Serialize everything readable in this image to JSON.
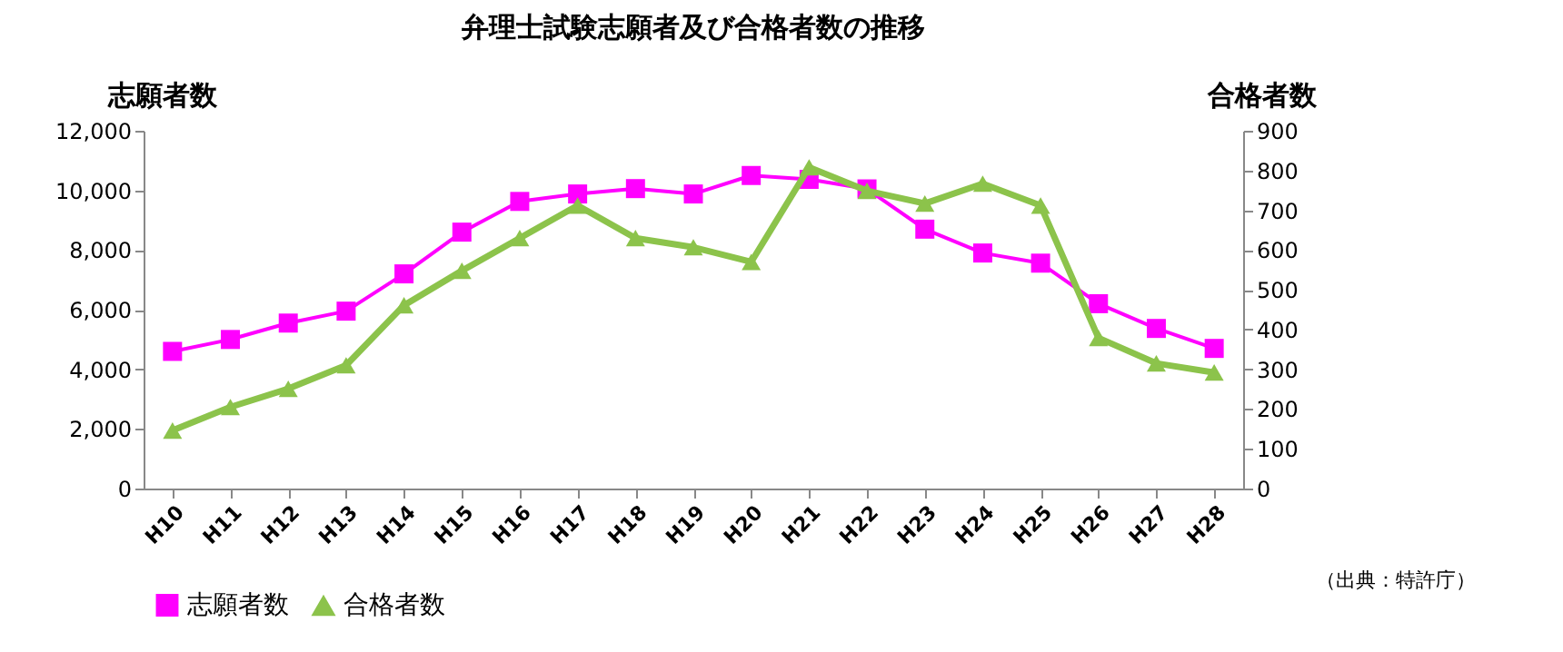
{
  "chart_data": {
    "type": "line",
    "title": "弁理士試験志願者及び合格者数の推移",
    "ylabel": "志願者数",
    "y2label": "合格者数",
    "categories": [
      "H10",
      "H11",
      "H12",
      "H13",
      "H14",
      "H15",
      "H16",
      "H17",
      "H18",
      "H19",
      "H20",
      "H21",
      "H22",
      "H23",
      "H24",
      "H25",
      "H26",
      "H27",
      "H28"
    ],
    "series": [
      {
        "name": "志願者数",
        "color": "#ff00ff",
        "marker": "square",
        "values": [
          4600,
          5000,
          5550,
          5950,
          7200,
          8600,
          9630,
          9880,
          10060,
          9880,
          10500,
          10370,
          10050,
          8700,
          7900,
          7560,
          6200,
          5370,
          4700
        ]
      },
      {
        "name": "合格者数",
        "color": "#8cc34b",
        "marker": "triangle",
        "axis": "y2",
        "values": [
          146,
          205,
          251,
          310,
          461,
          548,
          630,
          712,
          630,
          607,
          570,
          808,
          749,
          717,
          767,
          712,
          379,
          315,
          292
        ]
      }
    ],
    "ylim": [
      0,
      12000
    ],
    "yticks": [
      0,
      {
        "value": 2000,
        "label": "2,000"
      },
      {
        "value": 4000,
        "label": "4,000"
      },
      {
        "value": 6000,
        "label": "6,000"
      },
      {
        "value": 8000,
        "label": "8,000"
      },
      {
        "value": 10000,
        "label": "10,000"
      },
      {
        "value": 12000,
        "label": "12,000"
      }
    ],
    "y2lim": [
      0,
      900
    ],
    "y2ticks": [
      0,
      100,
      200,
      300,
      400,
      500,
      600,
      700,
      800,
      900
    ],
    "grid": false,
    "legend": "bottom",
    "annotations": [
      "（出典：特許庁）"
    ]
  }
}
